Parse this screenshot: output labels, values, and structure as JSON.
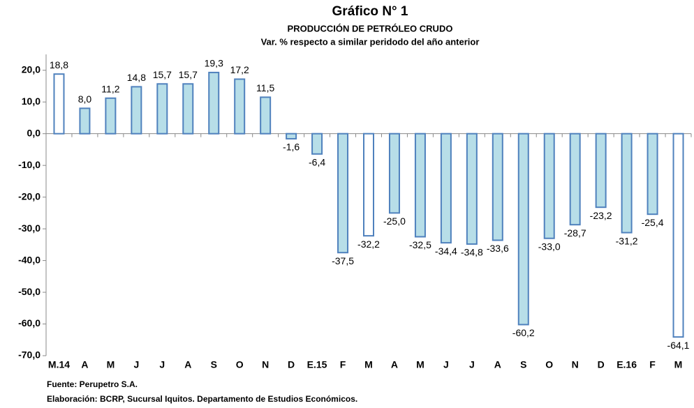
{
  "chart_data": {
    "type": "bar",
    "title": "Gráfico N° 1",
    "subtitle": "PRODUCCIÓN DE PETRÓLEO CRUDO",
    "subtitle2": "Var. % respecto a similar peridodo del año anterior",
    "categories": [
      "M.14",
      "A",
      "M",
      "J",
      "J",
      "A",
      "S",
      "O",
      "N",
      "D",
      "E.15",
      "F",
      "M",
      "A",
      "M",
      "J",
      "J",
      "A",
      "S",
      "O",
      "N",
      "D",
      "E.16",
      "F",
      "M"
    ],
    "values": [
      18.8,
      8.0,
      11.2,
      14.8,
      15.7,
      15.7,
      19.3,
      17.2,
      11.5,
      -1.6,
      -6.4,
      -37.5,
      -32.2,
      -25.0,
      -32.5,
      -34.4,
      -34.8,
      -33.6,
      -60.2,
      -33.0,
      -28.7,
      -23.2,
      -31.2,
      -25.4,
      -64.1
    ],
    "value_labels": [
      "18,8",
      "8,0",
      "11,2",
      "14,8",
      "15,7",
      "15,7",
      "19,3",
      "17,2",
      "11,5",
      "-1,6",
      "-6,4",
      "-37,5",
      "-32,2",
      "-25,0",
      "-32,5",
      "-34,4",
      "-34,8",
      "-33,6",
      "-60,2",
      "-33,0",
      "-28,7",
      "-23,2",
      "-31,2",
      "-25,4",
      "-64,1"
    ],
    "colors": [
      "#ffffff",
      "#b7dee8",
      "#b7dee8",
      "#b7dee8",
      "#b7dee8",
      "#b7dee8",
      "#b7dee8",
      "#b7dee8",
      "#b7dee8",
      "#b7dee8",
      "#b7dee8",
      "#b7dee8",
      "#ffffff",
      "#b7dee8",
      "#b7dee8",
      "#b7dee8",
      "#b7dee8",
      "#b7dee8",
      "#b7dee8",
      "#b7dee8",
      "#b7dee8",
      "#b7dee8",
      "#b7dee8",
      "#b7dee8",
      "#ffffff"
    ],
    "border_color": "#4f81bd",
    "ylim": [
      -70,
      25
    ],
    "yticks": [
      {
        "value": 20,
        "label": "20,0"
      },
      {
        "value": 10,
        "label": "10,0"
      },
      {
        "value": 0,
        "label": "0,0"
      },
      {
        "value": -10,
        "label": "-10,0"
      },
      {
        "value": -20,
        "label": "-20,0"
      },
      {
        "value": -30,
        "label": "-30,0"
      },
      {
        "value": -40,
        "label": "-40,0"
      },
      {
        "value": -50,
        "label": "-50,0"
      },
      {
        "value": -60,
        "label": "-60,0"
      },
      {
        "value": -70,
        "label": "-70,0"
      }
    ],
    "grid": false,
    "source": "Fuente: Perupetro S.A.",
    "note": "Elaboración: BCRP, Sucursal Iquitos. Departamento de Estudios Económicos."
  }
}
